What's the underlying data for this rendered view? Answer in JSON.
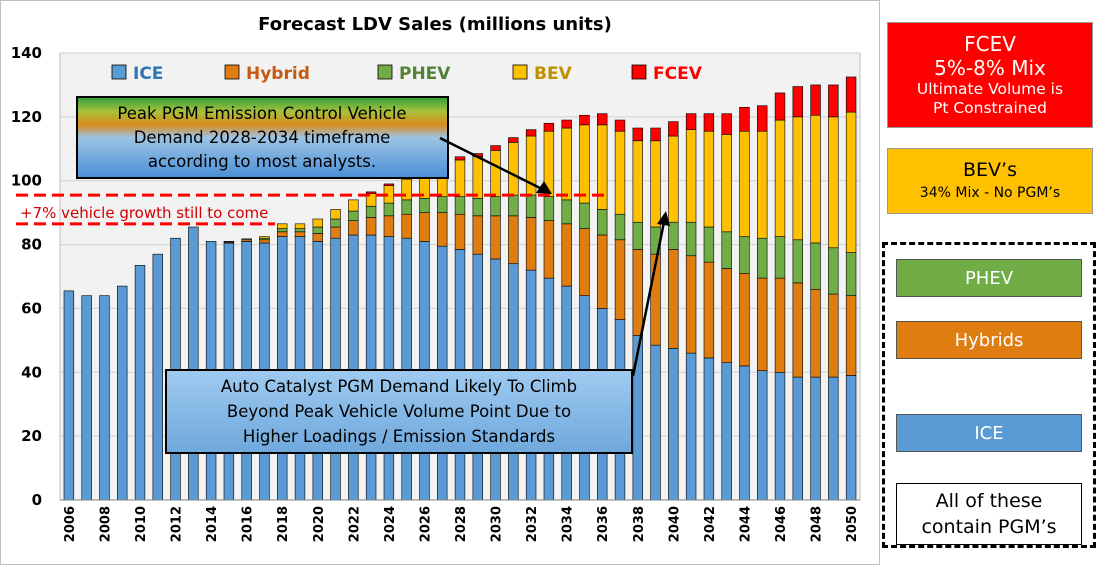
{
  "chart_data": {
    "type": "bar",
    "stacked": true,
    "title": "Forecast LDV Sales (millions units)",
    "ylim": [
      0,
      140
    ],
    "yticks": [
      0,
      20,
      40,
      60,
      80,
      100,
      120,
      140
    ],
    "xtick_labels": [
      "2006",
      "2008",
      "2010",
      "2012",
      "2014",
      "2016",
      "2018",
      "2020",
      "2022",
      "2024",
      "2026",
      "2028",
      "2030",
      "2032",
      "2034",
      "2036",
      "2038",
      "2040",
      "2042",
      "2044",
      "2046",
      "2048",
      "2050"
    ],
    "categories": [
      2006,
      2007,
      2008,
      2009,
      2010,
      2011,
      2012,
      2013,
      2014,
      2015,
      2016,
      2017,
      2018,
      2019,
      2020,
      2021,
      2022,
      2023,
      2024,
      2025,
      2026,
      2027,
      2028,
      2029,
      2030,
      2031,
      2032,
      2033,
      2034,
      2035,
      2036,
      2037,
      2038,
      2039,
      2040,
      2041,
      2042,
      2043,
      2044,
      2045,
      2046,
      2047,
      2048,
      2049,
      2050
    ],
    "series": [
      {
        "name": "ICE",
        "color": "#5b9bd5",
        "label_color": "#2e75b6",
        "values": [
          65.5,
          64,
          64,
          67,
          73.5,
          77,
          82,
          85.5,
          81,
          80.5,
          81,
          80.5,
          82.5,
          82.5,
          81,
          82,
          83,
          83,
          82.5,
          82,
          81,
          79.5,
          78.5,
          77,
          75.5,
          74,
          72,
          69.5,
          67,
          64,
          60,
          56.5,
          51.5,
          48.5,
          47.5,
          46,
          44.5,
          43,
          42,
          40.5,
          40,
          38.5,
          38.5,
          38.5,
          39
        ]
      },
      {
        "name": "Hybrid",
        "color": "#e07d10",
        "label_color": "#c55a11",
        "values": [
          0,
          0,
          0,
          0,
          0,
          0,
          0,
          0,
          0,
          0.3,
          0.5,
          1,
          1.5,
          1.5,
          2.5,
          3.5,
          4.5,
          5.5,
          6.5,
          7.5,
          9,
          10.5,
          11,
          12,
          13.5,
          15,
          16.5,
          18,
          19.5,
          21,
          23,
          25,
          27,
          28.5,
          31,
          30.5,
          30,
          29.5,
          29,
          29,
          29.5,
          29.5,
          27.5,
          26,
          25
        ]
      },
      {
        "name": "PHEV",
        "color": "#70ad47",
        "label_color": "#548235",
        "values": [
          0,
          0,
          0,
          0,
          0,
          0,
          0,
          0,
          0,
          0.2,
          0.3,
          0.5,
          1,
          1,
          2,
          2.5,
          3,
          3.5,
          4,
          4.5,
          4.5,
          5,
          5.5,
          5.5,
          6,
          6.5,
          7,
          7.5,
          7.5,
          8,
          8,
          8,
          8.5,
          8.5,
          8.5,
          10.5,
          11,
          11.5,
          11.5,
          12.5,
          13,
          13.5,
          14.5,
          14.5,
          13.5
        ]
      },
      {
        "name": "BEV",
        "color": "#ffc000",
        "label_color": "#bf9000",
        "values": [
          0,
          0,
          0,
          0,
          0,
          0,
          0,
          0,
          0,
          0,
          0,
          0.5,
          1.5,
          1.5,
          2.5,
          3,
          3.5,
          4,
          5.5,
          6.5,
          8,
          10,
          11.5,
          13,
          14.5,
          16.5,
          18.5,
          20.5,
          22.5,
          24.5,
          26.5,
          26,
          25.5,
          27,
          27,
          29,
          30,
          30.5,
          33,
          33.5,
          36.5,
          38.5,
          40,
          41,
          44
        ]
      },
      {
        "name": "FCEV",
        "color": "#ff0000",
        "label_color": "#ff0000",
        "values": [
          0,
          0,
          0,
          0,
          0,
          0,
          0,
          0,
          0,
          0,
          0,
          0,
          0,
          0,
          0,
          0,
          0,
          0.5,
          0.5,
          0.5,
          0.5,
          0.5,
          1,
          1,
          1.5,
          1.5,
          2,
          2.5,
          2.5,
          3,
          3.5,
          3.5,
          4,
          4,
          4.5,
          5,
          5.5,
          6.5,
          7.5,
          8,
          8.5,
          9.5,
          9.5,
          10,
          11
        ]
      }
    ],
    "growth_band": {
      "from": 86.5,
      "to": 95.5,
      "label": "+7% vehicle growth still to come"
    },
    "annotations": [
      {
        "text": [
          "Peak PGM Emission Control Vehicle",
          "Demand 2028-2034 timeframe",
          "according to most analysts."
        ]
      },
      {
        "text": [
          "Auto Catalyst PGM Demand Likely To Climb",
          "Beyond Peak Vehicle Volume Point Due to",
          "Higher Loadings / Emission Standards"
        ]
      }
    ]
  },
  "side_panel": {
    "fcev_box": {
      "title": "FCEV",
      "subtitle": "5%-8% Mix",
      "line1": "Ultimate Volume is",
      "line2": "Pt Constrained"
    },
    "bev_box": {
      "title": "BEV’s",
      "subtitle": "34% Mix - No PGM’s"
    },
    "phev_label": "PHEV",
    "hybrids_label": "Hybrids",
    "ice_label": "ICE",
    "pgm_note_line1": "All of these",
    "pgm_note_line2": "contain PGM’s"
  }
}
